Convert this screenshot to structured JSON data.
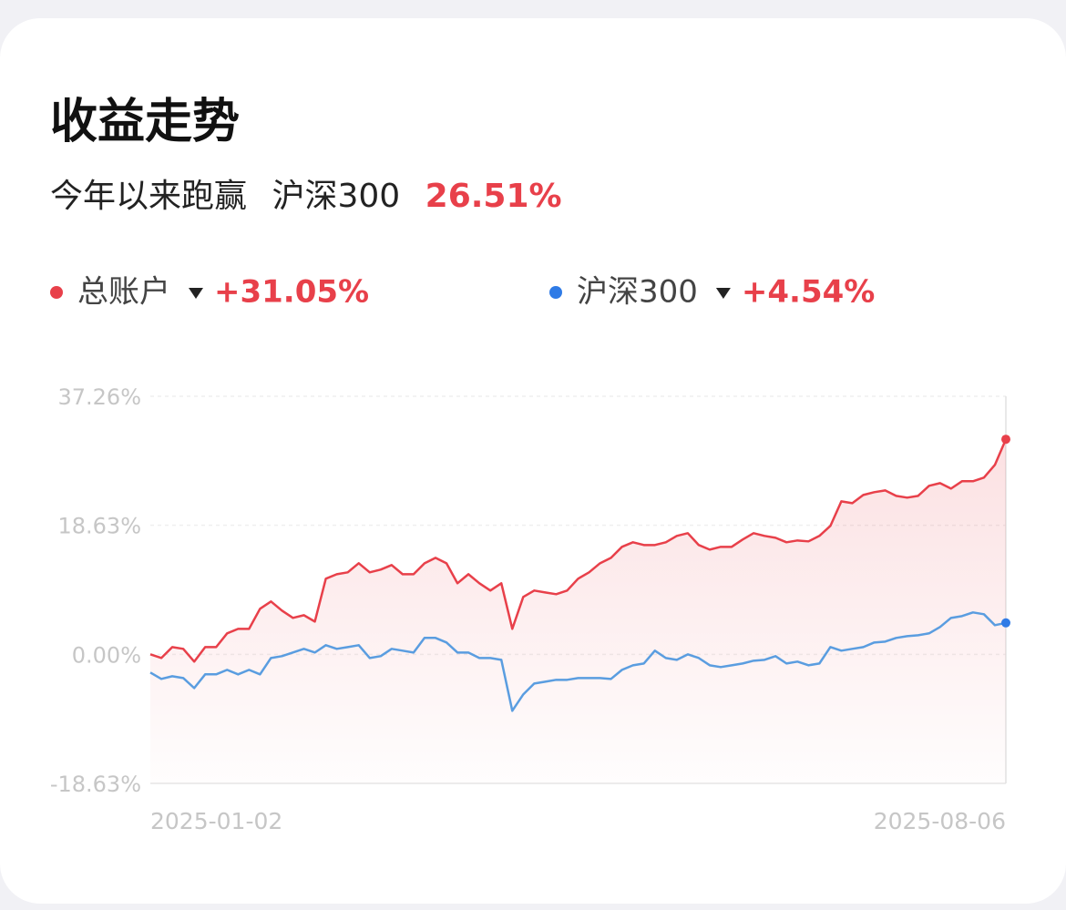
{
  "chart_data": {
    "type": "line",
    "title": "收益走势",
    "outperform": {
      "text": "今年以来跑赢",
      "benchmark": "沪深300",
      "value": 26.51,
      "value_label": "26.51%"
    },
    "categories": [
      "2025-01-02",
      null,
      null,
      null,
      null,
      null,
      null,
      null,
      null,
      null,
      null,
      null,
      null,
      null,
      null,
      null,
      null,
      null,
      null,
      null,
      null,
      null,
      null,
      null,
      null,
      null,
      null,
      null,
      null,
      null,
      null,
      null,
      null,
      null,
      null,
      null,
      null,
      null,
      null,
      null,
      null,
      null,
      null,
      null,
      null,
      null,
      null,
      null,
      null,
      null,
      null,
      null,
      null,
      null,
      null,
      null,
      null,
      null,
      null,
      null,
      null,
      null,
      null,
      null,
      null,
      null,
      null,
      null,
      null,
      null,
      null,
      null,
      null,
      null,
      null,
      null,
      null,
      null,
      "2025-08-06"
    ],
    "series": [
      {
        "name": "总账户",
        "color": "#e8404a",
        "return_value": 31.05,
        "return_label": "+31.05%",
        "area": true,
        "values": [
          0,
          -0.53,
          1.05,
          0.79,
          -1.05,
          1.05,
          1.05,
          3.03,
          3.68,
          3.68,
          6.58,
          7.63,
          6.31,
          5.26,
          5.65,
          4.73,
          10.92,
          11.57,
          11.84,
          13.15,
          11.84,
          12.23,
          12.89,
          11.57,
          11.57,
          13.15,
          13.94,
          13.15,
          10.26,
          11.57,
          10.26,
          9.21,
          10.26,
          3.68,
          8.29,
          9.21,
          8.94,
          8.68,
          9.21,
          10.92,
          11.84,
          13.15,
          13.94,
          15.52,
          16.18,
          15.78,
          15.78,
          16.18,
          17.1,
          17.49,
          15.78,
          15.12,
          15.52,
          15.52,
          16.57,
          17.49,
          17.1,
          16.83,
          16.18,
          16.44,
          16.31,
          17.1,
          18.54,
          22.09,
          21.83,
          23.01,
          23.41,
          23.67,
          22.88,
          22.62,
          22.88,
          24.33,
          24.72,
          23.93,
          24.99,
          24.99,
          25.51,
          27.35,
          31.05
        ]
      },
      {
        "name": "沪深300",
        "color": "#5a9de0",
        "dot_color": "#2f7be6",
        "return_value": 4.54,
        "return_label": "+4.54%",
        "area": false,
        "values": [
          -2.63,
          -3.55,
          -3.16,
          -3.42,
          -4.87,
          -2.89,
          -2.89,
          -2.24,
          -2.89,
          -2.24,
          -2.89,
          -0.53,
          -0.26,
          0.26,
          0.79,
          0.26,
          1.32,
          0.79,
          1.05,
          1.32,
          -0.53,
          -0.26,
          0.79,
          0.53,
          0.26,
          2.37,
          2.37,
          1.71,
          0.26,
          0.26,
          -0.53,
          -0.53,
          -0.79,
          -8.15,
          -5.79,
          -4.21,
          -3.95,
          -3.68,
          -3.68,
          -3.42,
          -3.42,
          -3.42,
          -3.55,
          -2.24,
          -1.58,
          -1.32,
          0.53,
          -0.53,
          -0.79,
          0,
          -0.53,
          -1.58,
          -1.84,
          -1.58,
          -1.32,
          -0.92,
          -0.79,
          -0.26,
          -1.32,
          -1.05,
          -1.58,
          -1.32,
          1.05,
          0.53,
          0.79,
          1.05,
          1.71,
          1.84,
          2.37,
          2.63,
          2.76,
          3.03,
          3.95,
          5.26,
          5.52,
          6.05,
          5.79,
          4.21,
          4.54
        ]
      }
    ],
    "positive_color": "#e8404a",
    "ylim": [
      -18.63,
      37.26
    ],
    "yticks": [
      {
        "value": -18.63,
        "label": "-18.63%"
      },
      {
        "value": 0,
        "label": "0.00%"
      },
      {
        "value": 18.63,
        "label": "18.63%"
      },
      {
        "value": 37.26,
        "label": "37.26%"
      }
    ],
    "grid": true
  }
}
